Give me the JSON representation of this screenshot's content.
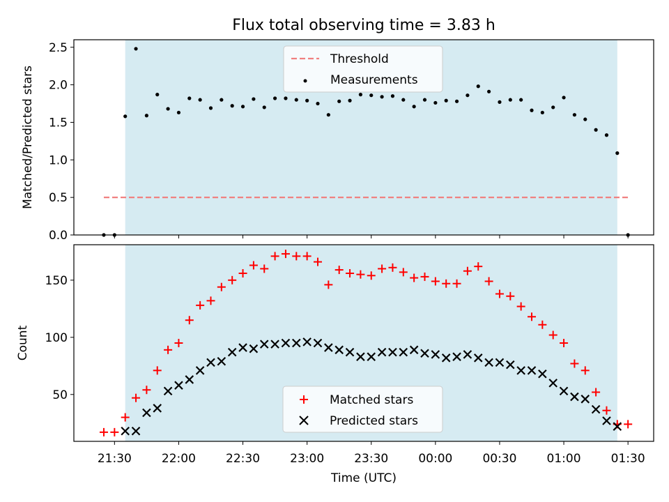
{
  "chart_data": [
    {
      "type": "scatter",
      "title": "Flux total observing time = 3.83 h",
      "ylabel": "Matched/Predicted stars",
      "ylim": [
        0,
        2.6
      ],
      "yticks": [
        "0.0",
        "0.5",
        "1.0",
        "1.5",
        "2.0",
        "2.5"
      ],
      "shaded_span": [
        "21:35",
        "01:25"
      ],
      "shade_color": "#add8e6",
      "threshold": {
        "name": "Threshold",
        "value": 0.5,
        "x": [
          "21:25",
          "01:30"
        ],
        "color": "#f08080"
      },
      "legend_position": "upper center",
      "series": [
        {
          "name": "Measurements",
          "color": "#000000",
          "marker": "dot",
          "x": [
            "21:25",
            "21:30",
            "21:35",
            "21:40",
            "21:45",
            "21:50",
            "21:55",
            "22:00",
            "22:05",
            "22:10",
            "22:15",
            "22:20",
            "22:25",
            "22:30",
            "22:35",
            "22:40",
            "22:45",
            "22:50",
            "22:55",
            "23:00",
            "23:05",
            "23:10",
            "23:15",
            "23:20",
            "23:25",
            "23:30",
            "23:35",
            "23:40",
            "23:45",
            "23:50",
            "23:55",
            "00:00",
            "00:05",
            "00:10",
            "00:15",
            "00:20",
            "00:25",
            "00:30",
            "00:35",
            "00:40",
            "00:45",
            "00:50",
            "00:55",
            "01:00",
            "01:05",
            "01:10",
            "01:15",
            "01:20",
            "01:25",
            "01:30"
          ],
          "values": [
            0.0,
            0.0,
            1.58,
            2.48,
            1.59,
            1.87,
            1.68,
            1.63,
            1.82,
            1.8,
            1.69,
            1.8,
            1.72,
            1.71,
            1.81,
            1.7,
            1.82,
            1.82,
            1.8,
            1.79,
            1.75,
            1.6,
            1.78,
            1.79,
            1.87,
            1.86,
            1.84,
            1.85,
            1.8,
            1.71,
            1.8,
            1.76,
            1.79,
            1.78,
            1.86,
            1.98,
            1.91,
            1.77,
            1.8,
            1.8,
            1.66,
            1.63,
            1.7,
            1.83,
            1.6,
            1.54,
            1.4,
            1.33,
            1.09,
            0.0
          ]
        }
      ]
    },
    {
      "type": "scatter",
      "xlabel": "Time (UTC)",
      "ylabel": "Count",
      "ylim": [
        9,
        181
      ],
      "yticks": [
        "50",
        "100",
        "150"
      ],
      "xticks": [
        "21:30",
        "22:00",
        "22:30",
        "23:00",
        "23:30",
        "00:00",
        "00:30",
        "01:00",
        "01:30"
      ],
      "xlim": [
        "21:11",
        "01:42"
      ],
      "shaded_span": [
        "21:35",
        "01:25"
      ],
      "shade_color": "#add8e6",
      "legend_position": "lower center",
      "series": [
        {
          "name": "Matched stars",
          "color": "#ff0000",
          "marker": "+",
          "x": [
            "21:25",
            "21:30",
            "21:35",
            "21:40",
            "21:45",
            "21:50",
            "21:55",
            "22:00",
            "22:05",
            "22:10",
            "22:15",
            "22:20",
            "22:25",
            "22:30",
            "22:35",
            "22:40",
            "22:45",
            "22:50",
            "22:55",
            "23:00",
            "23:05",
            "23:10",
            "23:15",
            "23:20",
            "23:25",
            "23:30",
            "23:35",
            "23:40",
            "23:45",
            "23:50",
            "23:55",
            "00:00",
            "00:05",
            "00:10",
            "00:15",
            "00:20",
            "00:25",
            "00:30",
            "00:35",
            "00:40",
            "00:45",
            "00:50",
            "00:55",
            "01:00",
            "01:05",
            "01:10",
            "01:15",
            "01:20",
            "01:25",
            "01:30"
          ],
          "values": [
            17,
            17,
            30,
            47,
            54,
            71,
            89,
            95,
            115,
            128,
            132,
            144,
            150,
            156,
            163,
            160,
            171,
            173,
            171,
            171,
            166,
            146,
            159,
            156,
            155,
            154,
            160,
            161,
            157,
            152,
            153,
            149,
            147,
            147,
            158,
            162,
            149,
            138,
            136,
            127,
            118,
            111,
            102,
            95,
            77,
            71,
            52,
            36,
            24,
            24
          ]
        },
        {
          "name": "Predicted stars",
          "color": "#000000",
          "marker": "x",
          "x": [
            "21:35",
            "21:40",
            "21:45",
            "21:50",
            "21:55",
            "22:00",
            "22:05",
            "22:10",
            "22:15",
            "22:20",
            "22:25",
            "22:30",
            "22:35",
            "22:40",
            "22:45",
            "22:50",
            "22:55",
            "23:00",
            "23:05",
            "23:10",
            "23:15",
            "23:20",
            "23:25",
            "23:30",
            "23:35",
            "23:40",
            "23:45",
            "23:50",
            "23:55",
            "00:00",
            "00:05",
            "00:10",
            "00:15",
            "00:20",
            "00:25",
            "00:30",
            "00:35",
            "00:40",
            "00:45",
            "00:50",
            "00:55",
            "01:00",
            "01:05",
            "01:10",
            "01:15",
            "01:20",
            "01:25"
          ],
          "values": [
            18,
            18,
            34,
            38,
            53,
            58,
            63,
            71,
            78,
            79,
            87,
            91,
            90,
            94,
            94,
            95,
            95,
            96,
            95,
            91,
            89,
            87,
            83,
            83,
            87,
            87,
            87,
            89,
            86,
            85,
            82,
            83,
            85,
            82,
            78,
            78,
            76,
            71,
            71,
            68,
            60,
            53,
            48,
            46,
            37,
            27,
            22
          ]
        }
      ]
    }
  ]
}
